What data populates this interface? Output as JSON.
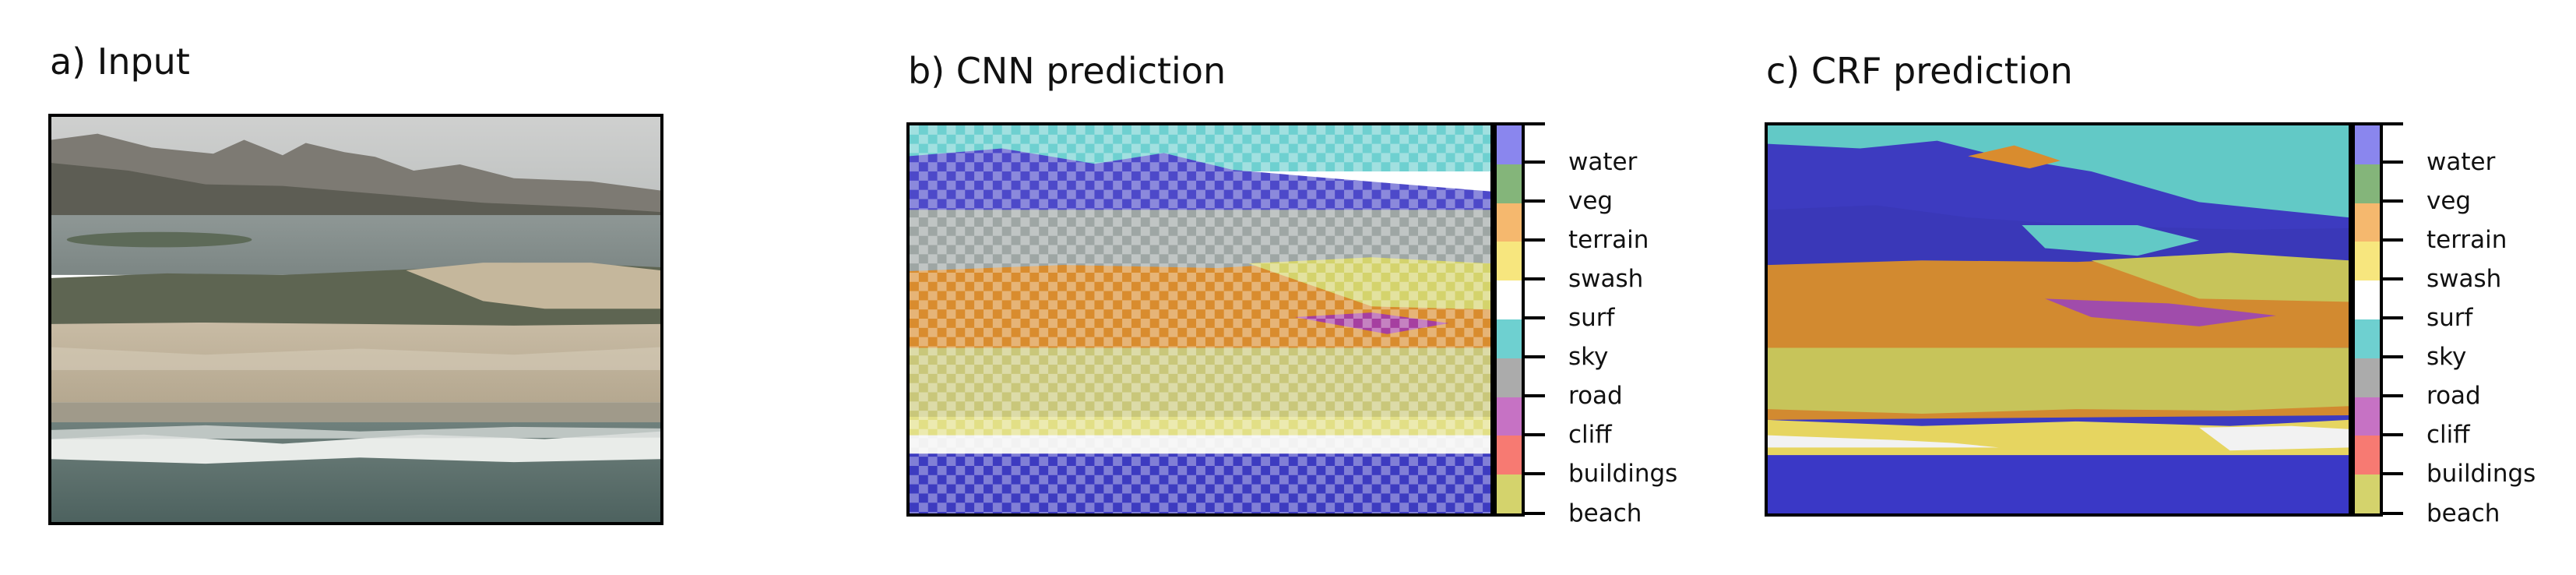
{
  "panels": [
    {
      "title": "a) Input"
    },
    {
      "title": "b) CNN prediction"
    },
    {
      "title": "c) CRF prediction"
    }
  ],
  "classes": [
    {
      "name": "beach",
      "color": "#d4d36c"
    },
    {
      "name": "buildings",
      "color": "#f77a72"
    },
    {
      "name": "cliff",
      "color": "#c672c4"
    },
    {
      "name": "road",
      "color": "#ababab"
    },
    {
      "name": "sky",
      "color": "#6ed0d0"
    },
    {
      "name": "surf",
      "color": "#ffffff"
    },
    {
      "name": "swash",
      "color": "#f7e67e"
    },
    {
      "name": "terrain",
      "color": "#f5b86e"
    },
    {
      "name": "veg",
      "color": "#84b57a"
    },
    {
      "name": "water",
      "color": "#8a86ee"
    }
  ]
}
